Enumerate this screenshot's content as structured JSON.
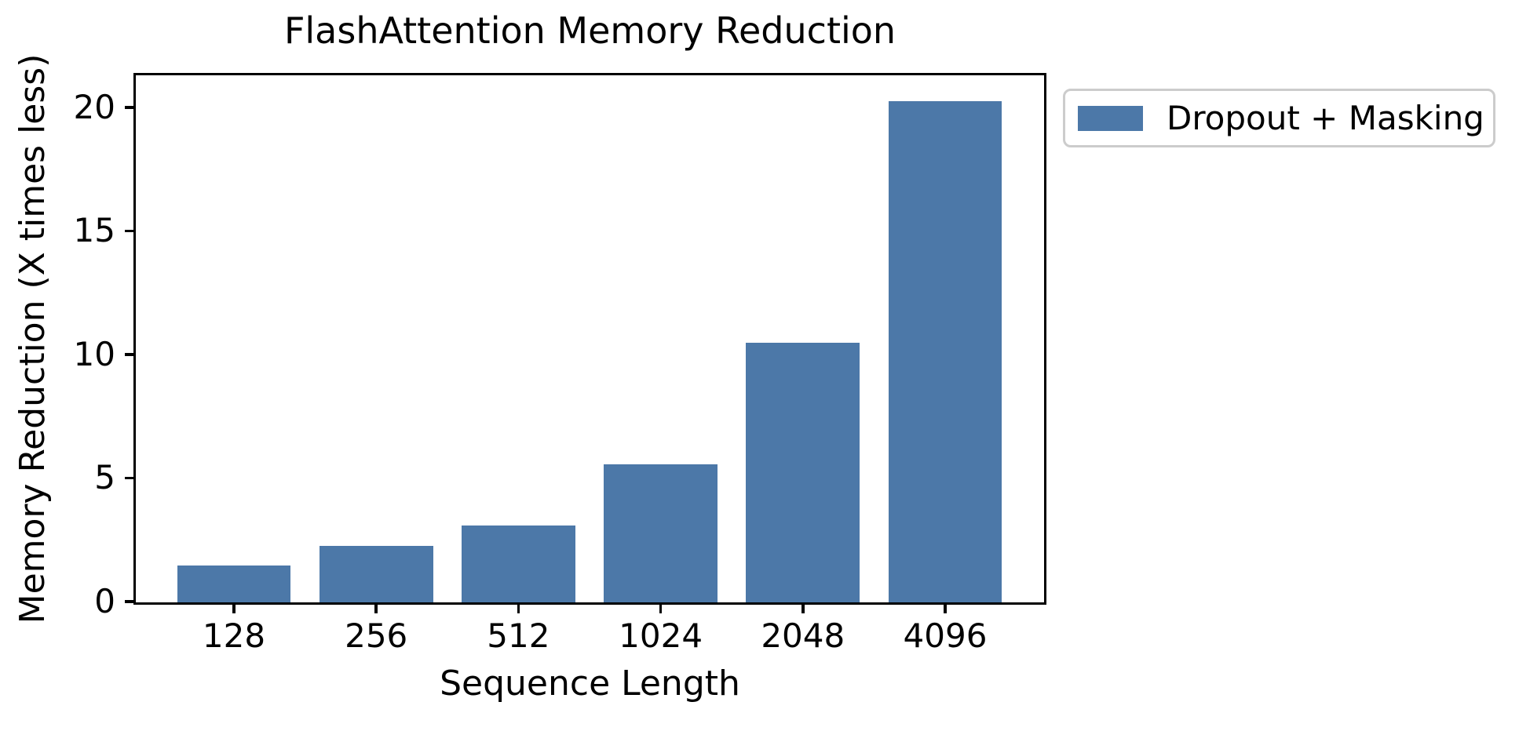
{
  "figure": {
    "background": "#ffffff",
    "text_color": "#000000",
    "frame_color": "#000000",
    "legend_border_color": "#cccccc"
  },
  "chart_data": {
    "type": "bar",
    "title": "FlashAttention Memory Reduction",
    "xlabel": "Sequence Length",
    "ylabel": "Memory Reduction (X times less)",
    "categories": [
      "128",
      "256",
      "512",
      "1024",
      "2048",
      "4096"
    ],
    "series": [
      {
        "name": "Dropout + Masking",
        "values": [
          1.5,
          2.3,
          3.1,
          5.6,
          10.5,
          20.3
        ]
      }
    ],
    "values": [
      1.5,
      2.3,
      3.1,
      5.6,
      10.5,
      20.3
    ],
    "yticks": [
      0,
      5,
      10,
      15,
      20
    ],
    "ylim": [
      0,
      21.3
    ],
    "grid": false,
    "bar_color": "#4c78a8",
    "legend": {
      "label": "Dropout + Masking",
      "position": "outside upper right"
    }
  }
}
